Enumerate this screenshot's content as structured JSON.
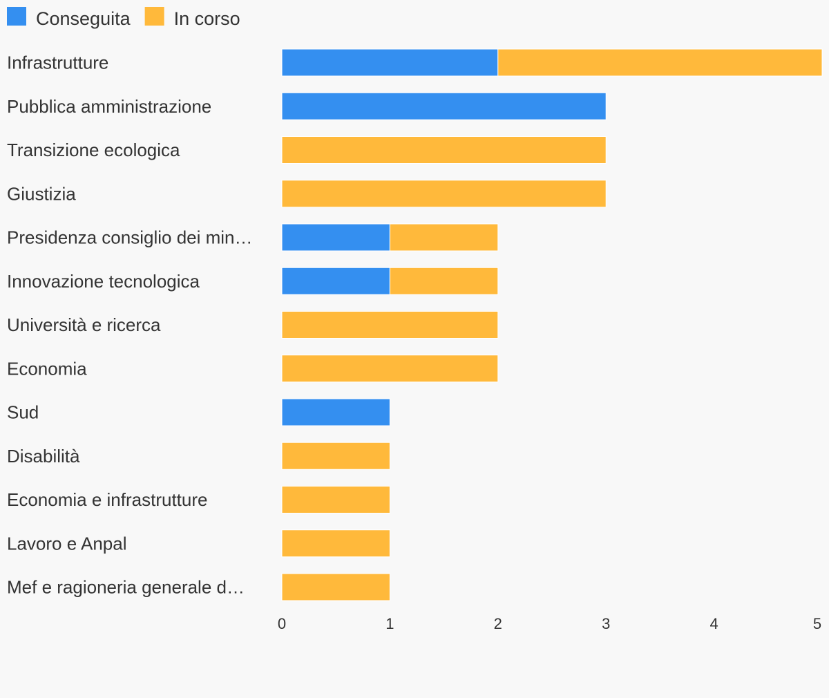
{
  "chart_data": {
    "type": "bar",
    "orientation": "horizontal",
    "stacked": true,
    "categories": [
      "Infrastrutture",
      "Pubblica amministrazione",
      "Transizione ecologica",
      "Giustizia",
      "Presidenza consiglio dei min…",
      "Innovazione tecnologica",
      "Università e ricerca",
      "Economia",
      "Sud",
      "Disabilità",
      "Economia e infrastrutture",
      "Lavoro e Anpal",
      "Mef e ragioneria generale d…"
    ],
    "series": [
      {
        "name": "Conseguita",
        "color": "#348ff0",
        "values": [
          2,
          3,
          0,
          0,
          1,
          1,
          0,
          0,
          1,
          0,
          0,
          0,
          0
        ]
      },
      {
        "name": "In corso",
        "color": "#ffb93b",
        "values": [
          3,
          0,
          3,
          3,
          1,
          1,
          2,
          2,
          0,
          1,
          1,
          1,
          1
        ]
      }
    ],
    "xlim": [
      0,
      5
    ],
    "xticks": [
      "0",
      "1",
      "2",
      "3",
      "4",
      "5"
    ],
    "legend": "top-left",
    "grid": false,
    "title": "",
    "xlabel": "",
    "ylabel": ""
  }
}
